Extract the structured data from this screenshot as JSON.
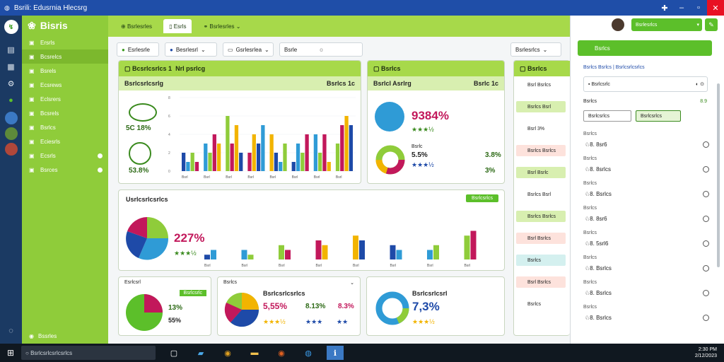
{
  "window": {
    "title": "Bsrili: Edusrnia Hlecsrg"
  },
  "sidebar": {
    "brand": "Bisris",
    "items": [
      {
        "label": "Ersrls"
      },
      {
        "label": "Bcsrelcs"
      },
      {
        "label": "Bsrels"
      },
      {
        "label": "Ecsrews"
      },
      {
        "label": "Eclsrers"
      },
      {
        "label": "Bcsrels"
      },
      {
        "label": "Bsrlcs"
      },
      {
        "label": "Eciesrls"
      },
      {
        "label": "Ecsrls"
      },
      {
        "label": "Bsrces"
      }
    ],
    "footer_label": "Bssrles"
  },
  "topbar": {
    "tabs": [
      {
        "label": "Bsrlesrles"
      },
      {
        "label": "Esrls"
      },
      {
        "label": "Bsrlesrles"
      }
    ],
    "user_label": "Bsrlesrlcs"
  },
  "filters": {
    "selects": [
      "Esrlesrle",
      "Besrlesrl",
      "Gsrlesrlea"
    ],
    "input_value": "Bsrle",
    "input_hint": "o",
    "right_select": "Bsrlesrlcs"
  },
  "cards": {
    "main": {
      "title": "Bcsrlcsrlcs 1",
      "title2": "Nrl psrlcg",
      "subtitle": "Bsrlcsrlcsrlg",
      "sub_right": "Bsrlcs 1c",
      "badge1": "Bsrl",
      "badge2": "Bsrl",
      "pct_a": "5C 18%",
      "pct_b": "53.8%"
    },
    "side1": {
      "title": "Bsrlcs",
      "subtitle": "Bsrlcl Asrlrg",
      "sub_right": "Bsrlc 1c",
      "big": "9384%",
      "stars": "★★★½",
      "label": "Bsrlc",
      "v1": "5.5%",
      "v2": "1.8%",
      "r1": "3.8%",
      "r2": "3%"
    },
    "wide": {
      "title": "Usrlcsrlcsrlcs",
      "btn": "Bsrlcsrlcs",
      "big": "227%",
      "stars": "★★★½"
    },
    "b1": {
      "title": "Esrlcsrl",
      "tag": "Bsrlcsrlc",
      "v1": "13%",
      "v2": "55%"
    },
    "b2": {
      "title": "Bsrlcs",
      "subtitle": "Bsrlcsrlcsrlcs",
      "big": "5,55%",
      "v1": "8.13%",
      "v2": "8.3%"
    },
    "b3": {
      "title": "Bsrlcsrlcsrl",
      "big": "7,3%"
    }
  },
  "mid_panel": {
    "header": "Bsrlcs",
    "items": [
      "Bsrl Bsrlcs",
      "Bsrlcs Bsrl",
      "Bsrl 3%",
      "Bsrlcs Bsrlcs",
      "Bsrl Bsrlc",
      "Bsrlcs Bsrl",
      "Bsrlcs Bsrlcs",
      "Bsrl Bsrlcs",
      "Bsrlcs",
      "Bsrl Bsrlcs",
      "Bsrlcs"
    ]
  },
  "right_panel": {
    "button": "Bsrlcs",
    "link": "Bsrlcs Bsrlcs | Bsrlcsrlcsrlcs",
    "field": "Bsrlcsrlc",
    "count": "8.9",
    "label2": "Bsrlcs",
    "pill1": "Bsrlcsrlcs",
    "pill2": "Bsrlcsrlcs",
    "rows": [
      {
        "label": "Bsrlcs",
        "val": "8. 8sr6"
      },
      {
        "label": "Bsrlcs",
        "val": "8. 8srlcs"
      },
      {
        "label": "Bsrlcs",
        "val": "8. Bsrlcs"
      },
      {
        "label": "Bsrlcs",
        "val": "8. 8sr6"
      },
      {
        "label": "Bsrlcs",
        "val": "8. 5srl6"
      },
      {
        "label": "Bsrlcs",
        "val": "8. Bsrlcs"
      },
      {
        "label": "Bsrlcs",
        "val": "8. Bsrlcs"
      },
      {
        "label": "Bsrlcs",
        "val": "8. Bsrlcs"
      }
    ]
  },
  "taskbar": {
    "search": "Bsrlcsrlcsrlcsrlcs",
    "time": "2:30 PM",
    "date": "2/12/2023"
  },
  "chart_data": [
    {
      "type": "bar",
      "categories": [
        "Bsrl",
        "Bsrl",
        "Bsrl",
        "Bsrl",
        "Bsrl",
        "Bsrl",
        "Bsrl",
        "Bsrl"
      ],
      "series": [
        {
          "values": [
            2,
            3,
            6,
            2,
            4,
            1,
            4,
            3
          ]
        },
        {
          "values": [
            1,
            2,
            3,
            4,
            2,
            3,
            2,
            5
          ]
        },
        {
          "values": [
            2,
            4,
            5,
            3,
            1,
            2,
            4,
            6
          ]
        },
        {
          "values": [
            1,
            3,
            2,
            5,
            3,
            4,
            1,
            5
          ]
        }
      ],
      "ylim": [
        0,
        8
      ]
    },
    {
      "type": "bar",
      "categories": [
        "Bsrl",
        "Bsrl",
        "Bsrl",
        "Bsrl",
        "Bsrl",
        "Bsrl",
        "Bsrl",
        "Bsrl"
      ],
      "series": [
        {
          "values": [
            1,
            2,
            3,
            4,
            5,
            3,
            2,
            5
          ]
        },
        {
          "values": [
            2,
            1,
            2,
            3,
            4,
            2,
            3,
            6
          ]
        }
      ],
      "ylim": [
        0,
        8
      ]
    }
  ]
}
